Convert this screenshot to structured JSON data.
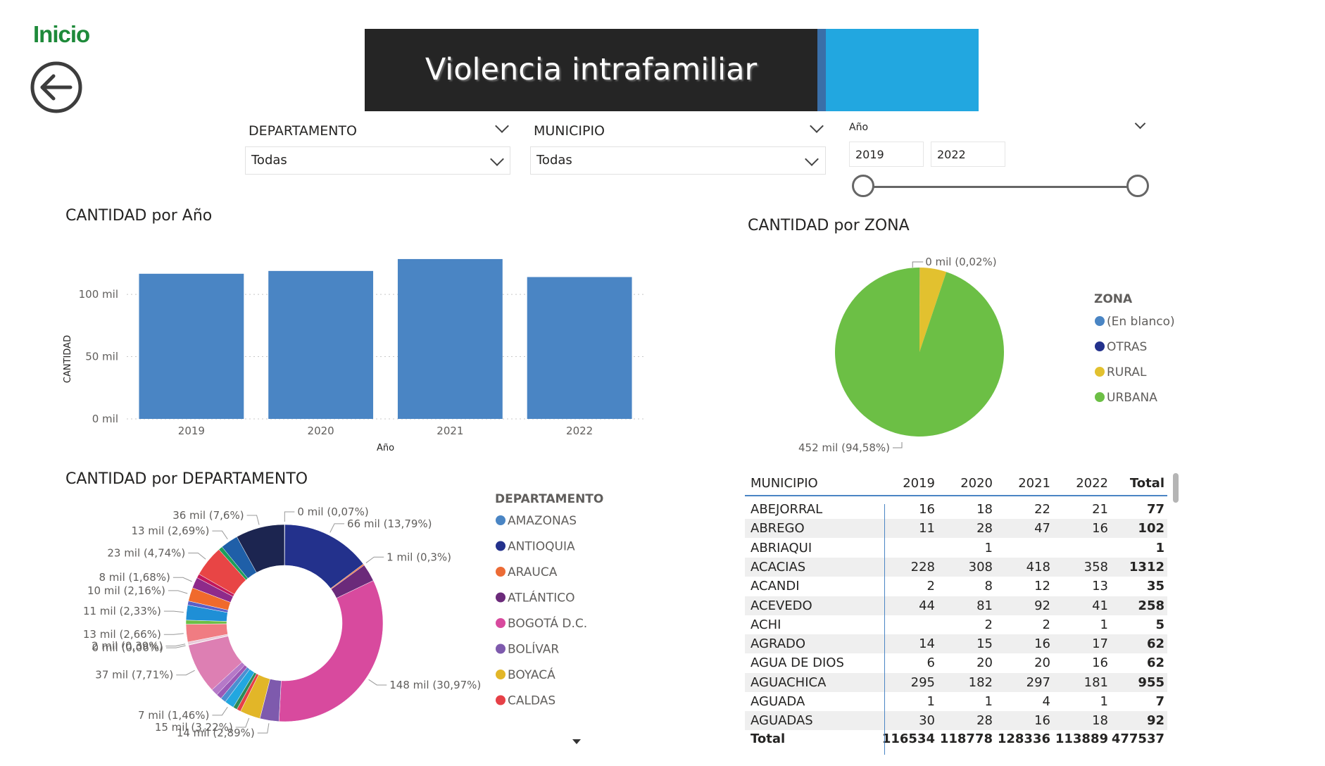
{
  "nav": {
    "home_label": "Inicio"
  },
  "header": {
    "title": "Violencia intrafamiliar"
  },
  "filters": {
    "departamento": {
      "label": "DEPARTAMENTO",
      "value": "Todas"
    },
    "municipio": {
      "label": "MUNICIPIO",
      "value": "Todas"
    },
    "anio": {
      "label": "Año",
      "from": "2019",
      "to": "2022"
    }
  },
  "colors": {
    "bar": "#4a85c4",
    "accent_blue": "#22a7e0",
    "banner_dark": "#252525",
    "green_title": "#1e8a3a"
  },
  "visuals": {
    "by_year_title": "CANTIDAD por Año",
    "by_zone_title": "CANTIDAD por ZONA",
    "by_dept_title": "CANTIDAD por DEPARTAMENTO"
  },
  "chart_data": [
    {
      "type": "bar",
      "title": "CANTIDAD por Año",
      "xlabel": "Año",
      "ylabel": "CANTIDAD",
      "categories": [
        "2019",
        "2020",
        "2021",
        "2022"
      ],
      "values": [
        116534,
        118778,
        128336,
        113889
      ],
      "ylim": [
        0,
        130000
      ],
      "yticks": [
        0,
        50000,
        100000
      ],
      "ytick_labels": [
        "0 mil",
        "50 mil",
        "100 mil"
      ],
      "color": "#4a85c4",
      "grid": true
    },
    {
      "type": "pie",
      "title": "CANTIDAD por ZONA",
      "legend_title": "ZONA",
      "legend_position": "right",
      "labels": [
        "(En blanco)",
        "OTRAS",
        "RURAL",
        "URBANA"
      ],
      "colors": [
        "#4a85c4",
        "#23318c",
        "#e2c12f",
        "#6cbf45"
      ],
      "values": [
        90,
        100,
        24400,
        452000
      ],
      "data_labels": [
        {
          "text": "0 mil (0,02%)",
          "slice": 1
        },
        {
          "text": "452 mil (94,58%)",
          "slice": 3
        }
      ]
    },
    {
      "type": "pie",
      "title": "CANTIDAD por DEPARTAMENTO",
      "legend_title": "DEPARTAMENTO",
      "legend_position": "right",
      "legend_items": [
        "AMAZONAS",
        "ANTIOQUIA",
        "ARAUCA",
        "ATLÁNTICO",
        "BOGOTÁ D.C.",
        "BOLÍVAR",
        "BOYACÁ",
        "CALDAS"
      ],
      "legend_colors": [
        "#4a85c4",
        "#23318c",
        "#ec6b35",
        "#6b2a7a",
        "#d84a9e",
        "#7e5aad",
        "#e2b628",
        "#e64047"
      ],
      "slices": [
        {
          "value": 0.3,
          "color": "#4a85c4",
          "label": "0 mil (0,07%)"
        },
        {
          "value": 66,
          "color": "#23318c",
          "label": "66 mil (13,79%)"
        },
        {
          "value": 1,
          "color": "#ec6b35",
          "label": "1 mil (0,3%)"
        },
        {
          "value": 13,
          "color": "#6b2a7a",
          "label": ""
        },
        {
          "value": 148,
          "color": "#d84a9e",
          "label": "148 mil (30,97%)"
        },
        {
          "value": 14,
          "color": "#7e5aad",
          "label": "14 mil (2,89%)"
        },
        {
          "value": 15,
          "color": "#e2b628",
          "label": "15 mil (3,22%)"
        },
        {
          "value": 3,
          "color": "#e64047",
          "label": ""
        },
        {
          "value": 3,
          "color": "#2e8b57",
          "label": ""
        },
        {
          "value": 7,
          "color": "#22a7e0",
          "label": "7 mil (1,46%)"
        },
        {
          "value": 4,
          "color": "#4b8fd1",
          "label": ""
        },
        {
          "value": 4,
          "color": "#9b59b6",
          "label": ""
        },
        {
          "value": 5,
          "color": "#b579c8",
          "label": ""
        },
        {
          "value": 37,
          "color": "#dd7fb3",
          "label": "37 mil (7,71%)"
        },
        {
          "value": 0.3,
          "color": "#c3c3c3",
          "label": "0 mil (0,06%)"
        },
        {
          "value": 2,
          "color": "#e8c9d8",
          "label": "2 mil (0,39%)"
        },
        {
          "value": 13,
          "color": "#f07c82",
          "label": "13 mil (2,66%)"
        },
        {
          "value": 3,
          "color": "#6cbf45",
          "label": ""
        },
        {
          "value": 11,
          "color": "#1f8fd6",
          "label": "11 mil (2,33%)"
        },
        {
          "value": 3,
          "color": "#5b5fc7",
          "label": ""
        },
        {
          "value": 10,
          "color": "#f06a2c",
          "label": "10 mil (2,16%)"
        },
        {
          "value": 8,
          "color": "#8e2a8a",
          "label": "8 mil (1,68%)"
        },
        {
          "value": 3,
          "color": "#c2185b",
          "label": ""
        },
        {
          "value": 23,
          "color": "#e84545",
          "label": "23 mil (4,74%)"
        },
        {
          "value": 3,
          "color": "#1e9e5a",
          "label": ""
        },
        {
          "value": 13,
          "color": "#1f5fa8",
          "label": "13 mil (2,69%)"
        },
        {
          "value": 36,
          "color": "#1c2550",
          "label": "36 mil (7,6%)"
        }
      ]
    },
    {
      "type": "table",
      "columns": [
        "MUNICIPIO",
        "2019",
        "2020",
        "2021",
        "2022",
        "Total"
      ],
      "rows": [
        [
          "ABEJORRAL",
          "16",
          "18",
          "22",
          "21",
          "77"
        ],
        [
          "ABREGO",
          "11",
          "28",
          "47",
          "16",
          "102"
        ],
        [
          "ABRIAQUI",
          "",
          "1",
          "",
          "",
          "1"
        ],
        [
          "ACACIAS",
          "228",
          "308",
          "418",
          "358",
          "1312"
        ],
        [
          "ACANDI",
          "2",
          "8",
          "12",
          "13",
          "35"
        ],
        [
          "ACEVEDO",
          "44",
          "81",
          "92",
          "41",
          "258"
        ],
        [
          "ACHI",
          "",
          "2",
          "2",
          "1",
          "5"
        ],
        [
          "AGRADO",
          "14",
          "15",
          "16",
          "17",
          "62"
        ],
        [
          "AGUA DE DIOS",
          "6",
          "20",
          "20",
          "16",
          "62"
        ],
        [
          "AGUACHICA",
          "295",
          "182",
          "297",
          "181",
          "955"
        ],
        [
          "AGUADA",
          "1",
          "1",
          "4",
          "1",
          "7"
        ],
        [
          "AGUADAS",
          "30",
          "28",
          "16",
          "18",
          "92"
        ]
      ],
      "total": [
        "Total",
        "116534",
        "118778",
        "128336",
        "113889",
        "477537"
      ]
    }
  ]
}
